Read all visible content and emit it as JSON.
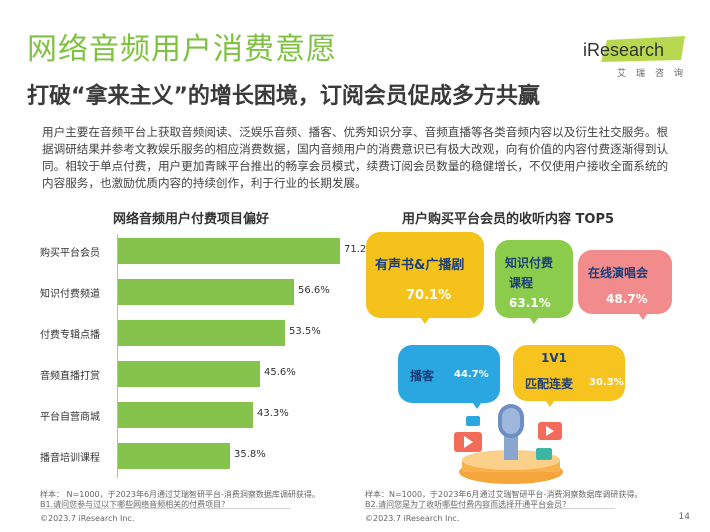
{
  "title": "网络音频用户消费意愿",
  "subtitle": "打破“拿来主义”的增长困境，订阅会员促成多方共赢",
  "logo": {
    "word": "iResearch",
    "sub": "艾瑞咨询"
  },
  "intro": "用户主要在音频平台上获取音频阅读、泛娱乐音频、播客、优秀知识分享、音频直播等各类音频内容以及衍生社交服务。根据调研结果并参考文教娱乐服务的相应消费数据，国内音频用户的消费意识已有极大改观，向有价值的内容付费逐渐得到认同。相较于单点付费，用户更加青睐平台推出的畅享会员模式，续费订阅会员数量的稳健增长，不仅使用户接收全面系统的内容服务，也激励优质内容的持续创作，利于行业的长期发展。",
  "chart_data": [
    {
      "type": "bar",
      "title": "网络音频用户付费项目偏好",
      "categories": [
        "购买平台会员",
        "知识付费频道",
        "付费专辑点播",
        "音频直播打赏",
        "平台自营商城",
        "播音培训课程"
      ],
      "values": [
        71.2,
        56.6,
        53.5,
        45.6,
        43.3,
        35.8
      ],
      "value_labels": [
        "71.2%",
        "56.6%",
        "53.5%",
        "45.6%",
        "43.3%",
        "35.8%"
      ],
      "orientation": "horizontal",
      "xlim": [
        0,
        80
      ],
      "color": "#86c34c"
    },
    {
      "type": "bar",
      "title": "用户购买平台会员的收听内容 TOP5",
      "categories": [
        "有声书&广播剧",
        "知识付费课程",
        "在线演唱会",
        "播客",
        "1V1匹配连麦"
      ],
      "values": [
        70.1,
        63.1,
        48.7,
        44.7,
        30.3
      ],
      "value_labels": [
        "70.1%",
        "63.1%",
        "48.7%",
        "44.7%",
        "30.3%"
      ]
    }
  ],
  "bubbles": [
    {
      "line1": "有声书&广播剧",
      "line2": "",
      "value": "70.1%",
      "bg": "#f4c21b",
      "fg": "#ffffff",
      "textfg": "#1b3f7a"
    },
    {
      "line1": "知识付费",
      "line2": "课程",
      "value": "63.1%",
      "bg": "#8ccc4c",
      "fg": "#ffffff",
      "textfg": "#1b3f7a"
    },
    {
      "line1": "在线演唱会",
      "line2": "",
      "value": "48.7%",
      "bg": "#f28b8b",
      "fg": "#ffffff",
      "textfg": "#1b3f7a"
    },
    {
      "line1": "播客",
      "line2": "",
      "value": "44.7%",
      "bg": "#2aa6e0",
      "fg": "#ffffff",
      "textfg": "#1b3f7a"
    },
    {
      "line1": "1V1",
      "line2": "匹配连麦",
      "value": "30.3%",
      "bg": "#f6c31f",
      "fg": "#ffffff",
      "textfg": "#1b3f7a"
    }
  ],
  "notes": {
    "left_line1": "样本： N=1000，于2023年6月通过艾瑞智研平台-消费洞察数据库调研获得。",
    "left_line2": "B1.请问您参与过以下哪些网络音频相关的付费项目？",
    "right_line1": "样本：N=1000，于2023年6月通过艾瑞智研平台-消费洞察数据库调研获得。",
    "right_line2": "B2.请问您是为了收听哪些付费内容而选择开通平台会员？"
  },
  "copyright_left": "©2023.7 iResearch Inc.",
  "copyright_right": "©2023.7 iResearch Inc.",
  "page_number": "14",
  "colors": {
    "brand_green": "#7fc241",
    "bar": "#86c34c"
  },
  "icons": [
    "iresearch-logo",
    "microphone-illustration"
  ]
}
